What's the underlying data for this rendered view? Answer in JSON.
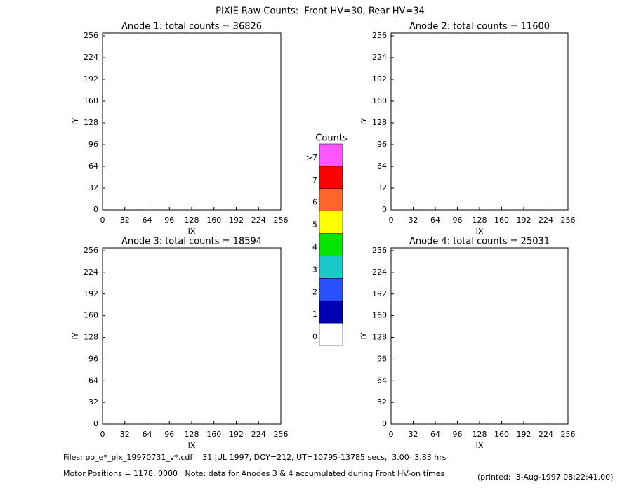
{
  "title": "PIXIE Raw Counts:  Front HV=30, Rear HV=34",
  "chart_data": [
    {
      "type": "heatmap",
      "title": "Anode 1: total counts = 36826",
      "x_label": "IX",
      "y_label": "IY",
      "xlim": [
        0,
        256
      ],
      "ylim": [
        0,
        256
      ],
      "xticks": [
        0,
        32,
        64,
        96,
        128,
        160,
        192,
        224,
        256
      ],
      "yticks": [
        0,
        32,
        64,
        96,
        128,
        160,
        192,
        224,
        256
      ]
    },
    {
      "type": "heatmap",
      "title": "Anode 2: total counts = 11600",
      "x_label": "IX",
      "y_label": "IY",
      "xlim": [
        0,
        256
      ],
      "ylim": [
        0,
        256
      ],
      "xticks": [
        0,
        32,
        64,
        96,
        128,
        160,
        192,
        224,
        256
      ],
      "yticks": [
        0,
        32,
        64,
        96,
        128,
        160,
        192,
        224,
        256
      ]
    },
    {
      "type": "heatmap",
      "title": "Anode 3: total counts = 18594",
      "x_label": "IX",
      "y_label": "IY",
      "xlim": [
        0,
        256
      ],
      "ylim": [
        0,
        256
      ],
      "xticks": [
        0,
        32,
        64,
        96,
        128,
        160,
        192,
        224,
        256
      ],
      "yticks": [
        0,
        32,
        64,
        96,
        128,
        160,
        192,
        224,
        256
      ]
    },
    {
      "type": "heatmap",
      "title": "Anode 4: total counts = 25031",
      "x_label": "IX",
      "y_label": "IY",
      "xlim": [
        0,
        256
      ],
      "ylim": [
        0,
        256
      ],
      "xticks": [
        0,
        32,
        64,
        96,
        128,
        160,
        192,
        224,
        256
      ],
      "yticks": [
        0,
        32,
        64,
        96,
        128,
        160,
        192,
        224,
        256
      ]
    }
  ],
  "colorbar": {
    "title": "Counts",
    "labels": [
      "0",
      "1",
      "2",
      "3",
      "4",
      "5",
      "6",
      "7",
      ">7"
    ],
    "colors": [
      "#ffffff",
      "#0000b4",
      "#2850ff",
      "#19c8c8",
      "#00e600",
      "#ffff00",
      "#ff6428",
      "#ff0000",
      "#ff55ff"
    ]
  },
  "footer": {
    "files": "Files: po_e*_pix_19970731_v*.cdf    31 JUL 1997, DOY=212, UT=10795-13785 secs,  3.00- 3.83 hrs",
    "motor": "Motor Positions = 1178, 0000   Note: data for Anodes 3 & 4 accumulated during Front HV-on times",
    "printed": "(printed:  3-Aug-1997 08:22:41.00)"
  }
}
